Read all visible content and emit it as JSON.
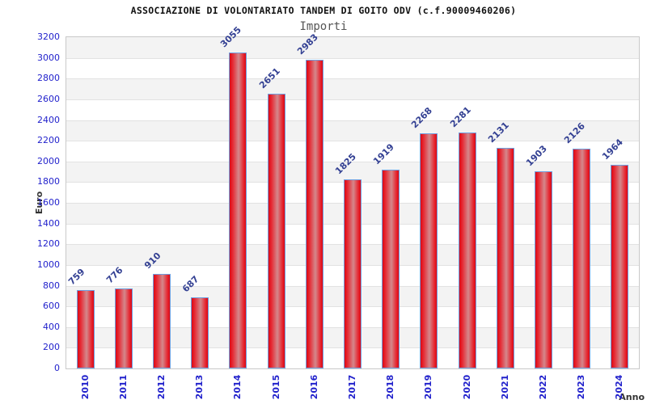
{
  "header": {
    "title": "ASSOCIAZIONE DI VOLONTARIATO TANDEM DI GOITO ODV (c.f.90009460206)",
    "subtitle": "Importi"
  },
  "chart_data": {
    "type": "bar",
    "title": "ASSOCIAZIONE DI VOLONTARIATO TANDEM DI GOITO ODV (c.f.90009460206)",
    "subtitle": "Importi",
    "categories": [
      "2010",
      "2011",
      "2012",
      "2013",
      "2014",
      "2015",
      "2016",
      "2017",
      "2018",
      "2019",
      "2020",
      "2021",
      "2022",
      "2023",
      "2024"
    ],
    "values": [
      759,
      776,
      910,
      687,
      3055,
      2651,
      2983,
      1825,
      1919,
      2268,
      2281,
      2131,
      1903,
      2126,
      1964
    ],
    "xlabel": "Anno",
    "ylabel": "Euro",
    "ylim": [
      0,
      3200
    ],
    "ytick_step": 200,
    "grid": "horizontal-bands-alternating",
    "legend": "none",
    "bar_value_labels": true,
    "value_label_rotation_deg": -45,
    "x_label_rotation_deg": -90
  },
  "colors": {
    "background": "#ffffff",
    "title": "#111111",
    "subtitle": "#555555",
    "axis_tick_label": "#2222cc",
    "bar_value_label": "#334093",
    "bar_fill": "#e31020",
    "bar_highlight": "#d4888c",
    "bar_border": "#6f9fe0",
    "band_gray": "#f3f3f3",
    "gridline": "#e2e2e2",
    "plot_border": "#c9c9c9",
    "axis_title": "#333333"
  }
}
